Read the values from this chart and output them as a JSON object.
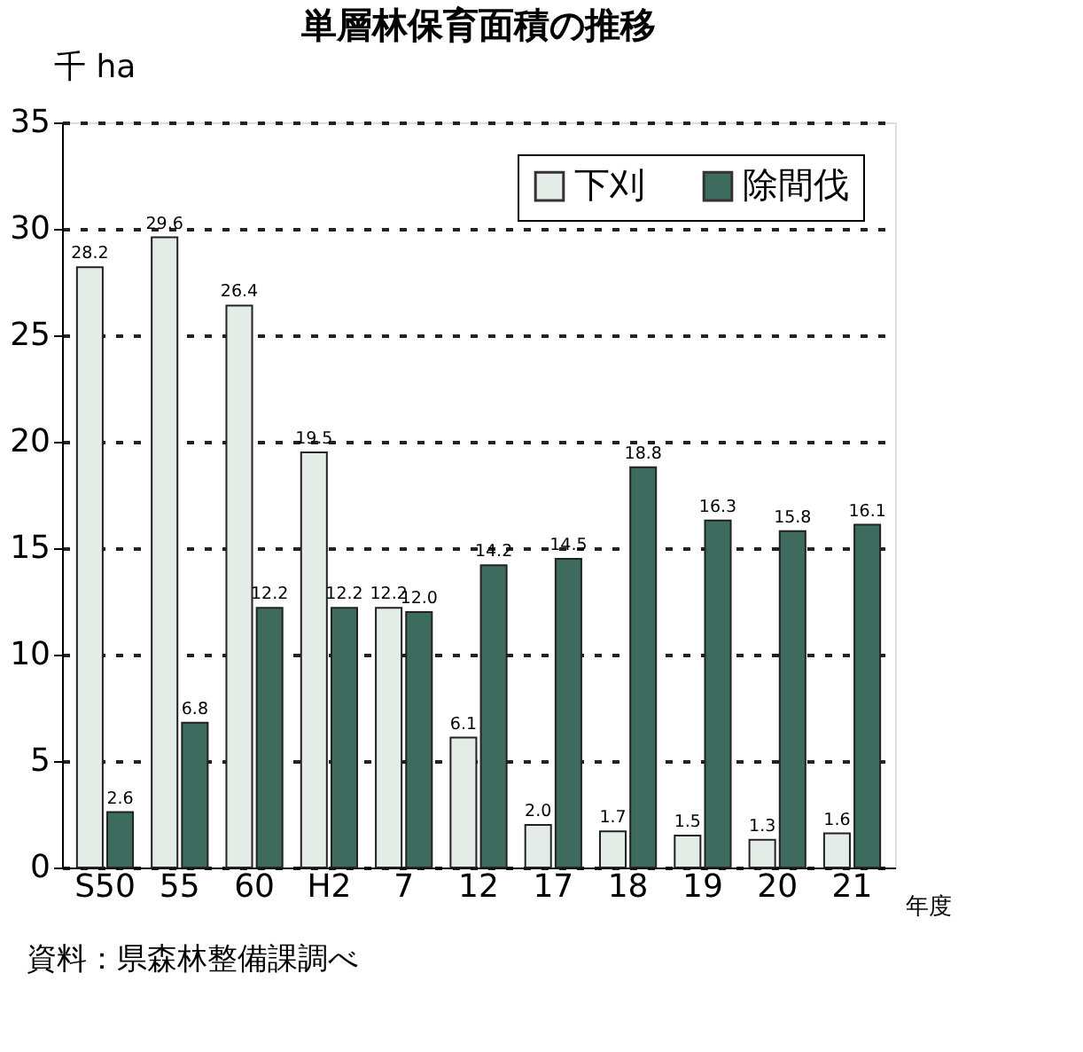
{
  "chart_data": {
    "type": "bar",
    "title": "単層林保育面積の推移",
    "ylabel": "千 ha",
    "xlabel": "年度",
    "annotations": [
      "資料：県森林整備課調べ"
    ],
    "categories": [
      "S50",
      "55",
      "60",
      "H2",
      "7",
      "12",
      "17",
      "18",
      "19",
      "20",
      "21"
    ],
    "series": [
      {
        "name": "下刈",
        "color": "#e4ece8",
        "values": [
          28.2,
          29.6,
          26.4,
          19.5,
          12.2,
          6.1,
          2.0,
          1.7,
          1.5,
          1.3,
          1.6
        ]
      },
      {
        "name": "除間伐",
        "color": "#3d6b5e",
        "values": [
          2.6,
          6.8,
          12.2,
          12.2,
          12.0,
          14.2,
          14.5,
          18.8,
          16.3,
          15.8,
          16.1
        ]
      }
    ],
    "ylim": [
      0,
      35
    ],
    "yticks": [
      0,
      5,
      10,
      15,
      20,
      25,
      30,
      35
    ],
    "grid": "y",
    "legend": "top right",
    "value_labels": [
      [
        "28.2",
        "29.6",
        "26.4",
        "19.5",
        "12.2",
        "6.1",
        "2.0",
        "1.7",
        "1.5",
        "1.3",
        "1.6"
      ],
      [
        "2.6",
        "6.8",
        "12.2",
        "12.2",
        "12.0",
        "14.2",
        "14.5",
        "18.8",
        "16.3",
        "15.8",
        "16.1"
      ]
    ]
  }
}
